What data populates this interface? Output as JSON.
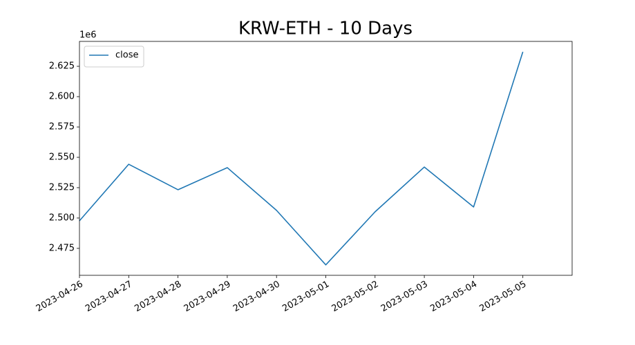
{
  "chart_data": {
    "type": "line",
    "title": "KRW-ETH - 10 Days",
    "y_offset_label": "1e6",
    "x": [
      "2023-04-26",
      "2023-04-27",
      "2023-04-28",
      "2023-04-29",
      "2023-04-30",
      "2023-05-01",
      "2023-05-02",
      "2023-05-03",
      "2023-05-04",
      "2023-05-05"
    ],
    "series": [
      {
        "name": "close",
        "color": "#1f77b4",
        "values": [
          2497700,
          2544300,
          2523300,
          2541500,
          2506300,
          2461400,
          2505100,
          2542000,
          2509100,
          2636900
        ]
      }
    ],
    "xlim": [
      "2023-04-26",
      "2023-05-06"
    ],
    "xticks": [
      "2023-04-26",
      "2023-04-27",
      "2023-04-28",
      "2023-04-29",
      "2023-04-30",
      "2023-05-01",
      "2023-05-02",
      "2023-05-03",
      "2023-05-04",
      "2023-05-05"
    ],
    "ylim": [
      2452800,
      2645500
    ],
    "yticks": [
      {
        "value": 2475000,
        "label": "2.475"
      },
      {
        "value": 2500000,
        "label": "2.500"
      },
      {
        "value": 2525000,
        "label": "2.525"
      },
      {
        "value": 2550000,
        "label": "2.550"
      },
      {
        "value": 2575000,
        "label": "2.575"
      },
      {
        "value": 2600000,
        "label": "2.600"
      },
      {
        "value": 2625000,
        "label": "2.625"
      }
    ],
    "grid": false,
    "legend": "upper-left"
  }
}
